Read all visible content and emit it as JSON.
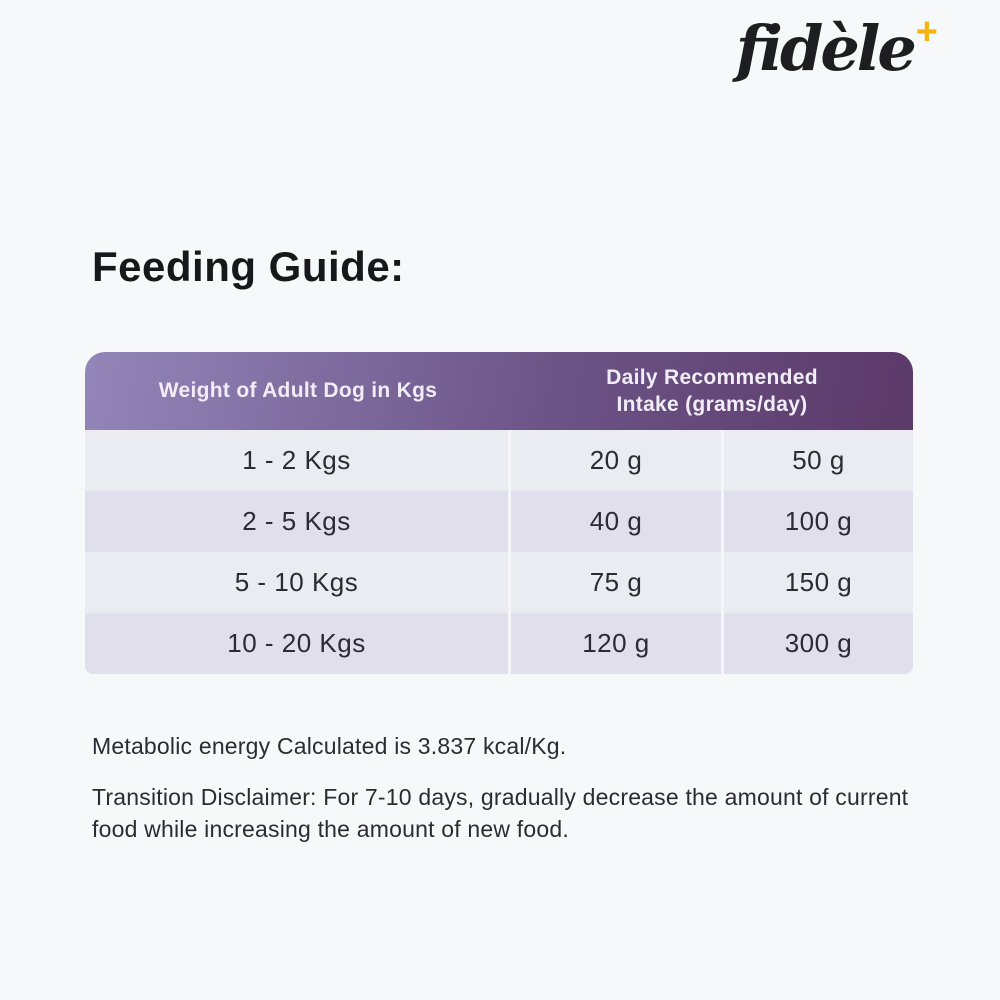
{
  "page": {
    "background": "#f7f8fa"
  },
  "logo": {
    "text": "fidèle",
    "plus": "+",
    "text_color": "#1e1e20",
    "plus_color": "#f6b40e"
  },
  "heading": "Feeding Guide:",
  "table": {
    "header": {
      "weight_col": "Weight of Adult Dog in Kgs",
      "intake_line1": "Daily Recommended",
      "intake_line2": "Intake (grams/day)",
      "gradient_from": "#9386b9",
      "gradient_to": "#5b3969",
      "text_color": "#f1edf6"
    },
    "rows": [
      {
        "weight": "1 - 2 Kgs",
        "min": "20 g",
        "max": "50 g"
      },
      {
        "weight": "2 - 5 Kgs",
        "min": "40 g",
        "max": "100 g"
      },
      {
        "weight": "5 - 10 Kgs",
        "min": "75 g",
        "max": "150 g"
      },
      {
        "weight": "10 - 20 Kgs",
        "min": "120 g",
        "max": "300 g"
      }
    ],
    "row_color_light": "#ebecf2",
    "row_color_dark": "#e1dfeb"
  },
  "notes": {
    "metabolic": "Metabolic energy Calculated is 3.837 kcal/Kg.",
    "transition": "Transition Disclaimer: For 7-10 days, gradually decrease the amount of current food while increasing the amount of new food."
  }
}
